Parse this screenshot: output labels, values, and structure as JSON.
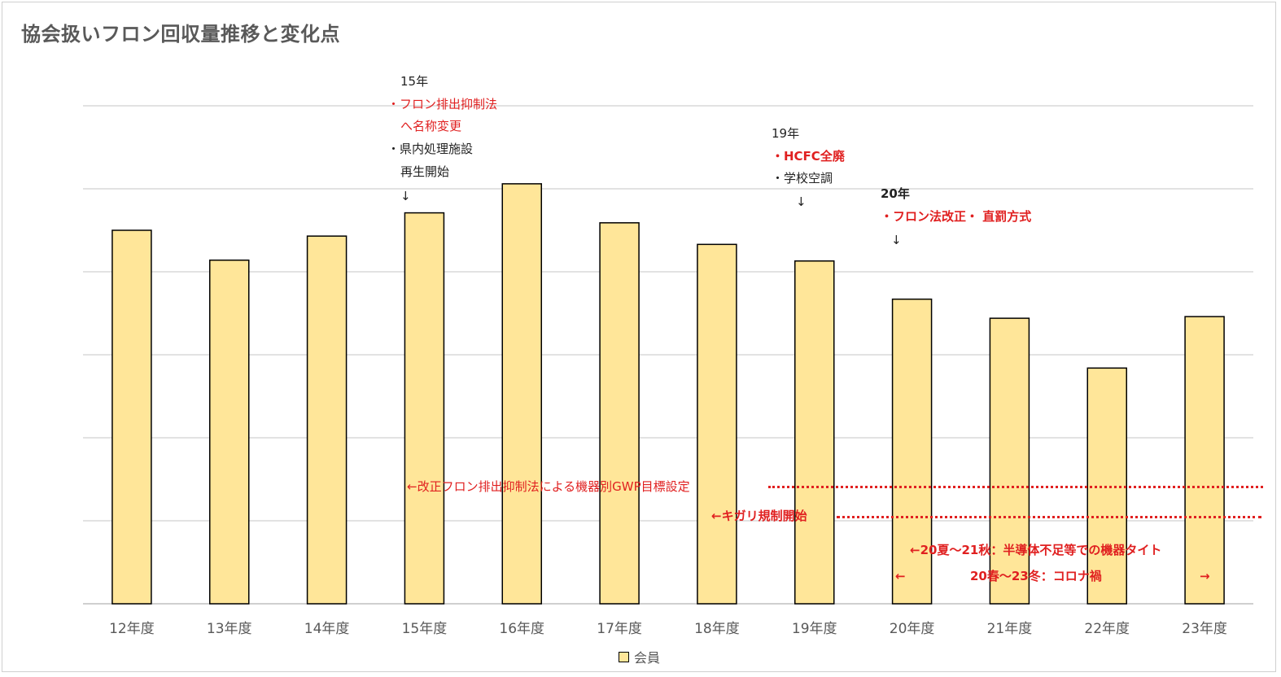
{
  "title": "協会扱いフロン回収量推移と変化点",
  "colors": {
    "bar_fill": "#ffe699",
    "bar_stroke": "#000000",
    "grid": "#d9d9d9",
    "annotation_red": "#e02020"
  },
  "chart_data": {
    "type": "bar",
    "categories": [
      "12年度",
      "13年度",
      "14年度",
      "15年度",
      "16年度",
      "17年度",
      "18年度",
      "19年度",
      "20年度",
      "21年度",
      "22年度",
      "23年度"
    ],
    "series": [
      {
        "name": "会員",
        "values": [
          4.5,
          4.14,
          4.43,
          4.71,
          5.06,
          4.59,
          4.33,
          4.13,
          3.67,
          3.44,
          2.84,
          3.46
        ]
      }
    ],
    "ylim": [
      0,
      6
    ],
    "grid": true,
    "y_tick_labels_shown": false,
    "legend_position": "bottom"
  },
  "annotations": {
    "y15": {
      "year": "15年",
      "line1": "・フロン排出抑制法",
      "line2": "へ名称変更",
      "line3": "・県内処理施設",
      "line4": "再生開始",
      "arrow": "↓"
    },
    "y19": {
      "year": "19年",
      "line1": "・HCFC全廃",
      "line2": "・学校空調",
      "arrow": "↓"
    },
    "y20": {
      "year": "20年",
      "line1": "・フロン法改正・ 直罰方式",
      "arrow": "↓"
    },
    "gwp": "←改正フロン排出抑制法による機器別GWP目標設定",
    "kigari": "←キガリ規制開始",
    "semi": "←20夏～21秋：半導体不足等での機器タイト",
    "corona": "20春～23冬：コロナ禍",
    "corona_left_arrow": "←",
    "corona_right_arrow": "→"
  },
  "legend": {
    "label": "会員"
  }
}
